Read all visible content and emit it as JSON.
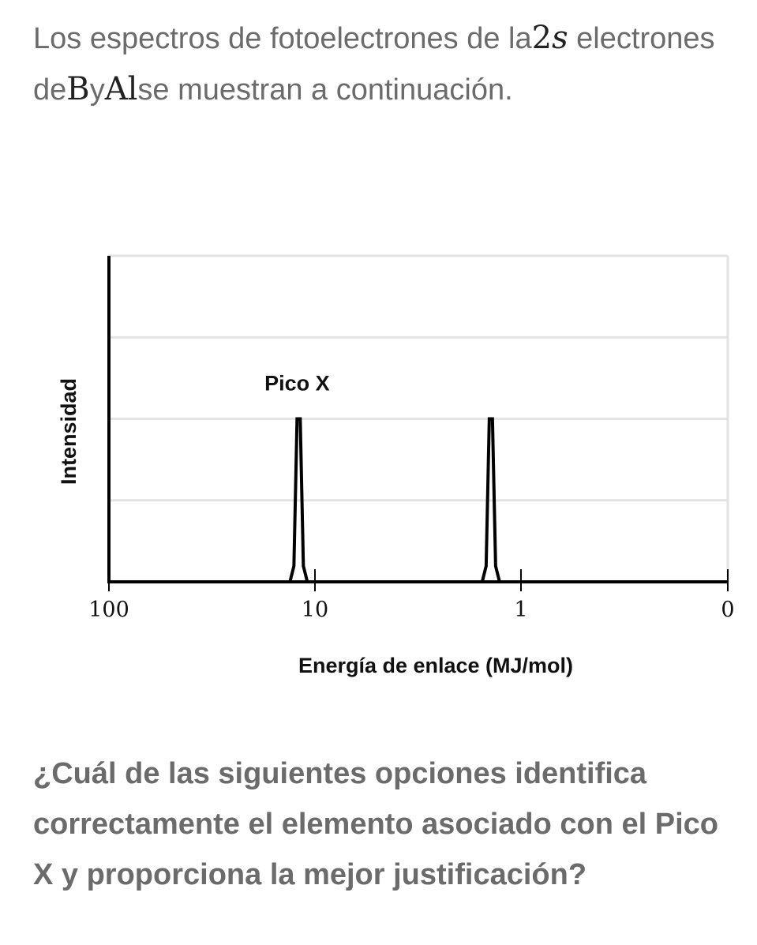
{
  "intro": {
    "text_1": "Los espectros de fotoelectrones de la",
    "math_2s_num": "2",
    "math_2s_letter": "s",
    "text_2": "electrones de",
    "math_B": "B",
    "text_3": "y",
    "math_Al": "Al",
    "text_4": "se muestran a continuación."
  },
  "question": "¿Cuál de las siguientes opciones identifica correctamente el elemento asociado con el Pico X y proporciona la mejor justificación?",
  "chart_data": {
    "type": "line",
    "xlabel": "Energía de enlace (MJ/mol)",
    "ylabel": "Intensidad",
    "x_scale": "log",
    "x_direction": "decreasing",
    "x_ticks": [
      "100",
      "10",
      "1",
      "0"
    ],
    "y_ticks_labeled": false,
    "grid": "horizontal",
    "annotation": "Pico X",
    "series": [
      {
        "peaks": [
          {
            "x": 12.0,
            "height": 0.5,
            "label": "Pico X"
          },
          {
            "x": 1.4,
            "height": 0.5
          }
        ]
      }
    ],
    "colors": {
      "line": "#000000",
      "grid": "#e3e3e3",
      "text": "#111111"
    }
  }
}
